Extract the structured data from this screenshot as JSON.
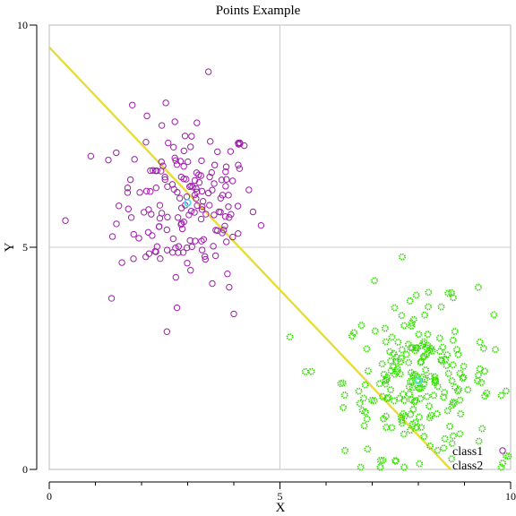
{
  "chart_data": {
    "type": "scatter",
    "title": "Points Example",
    "xlabel": "X",
    "ylabel": "Y",
    "xlim": [
      0,
      10
    ],
    "ylim": [
      0,
      10
    ],
    "x_major_ticks": [
      0,
      5,
      10
    ],
    "x_minor_ticks": [
      1,
      2,
      3,
      4,
      6,
      7,
      8,
      9
    ],
    "y_major_ticks": [
      0,
      5,
      10
    ],
    "grid": true,
    "legend_position": "bottom-right",
    "colors": {
      "class1": "#9c1fa8",
      "class2": "#33dd00",
      "centroid": "#55ddee",
      "line": "#e6dc3a",
      "grid": "#cccccc",
      "frame": "#bbbbbb"
    },
    "series": [
      {
        "name": "class1",
        "marker": "hollow-circle",
        "center": [
          3.0,
          6.0
        ],
        "spread": [
          0.75,
          0.9
        ],
        "count": 180,
        "x": [
          0.35,
          0.9,
          3.45,
          1.8,
          2.55,
          4.0,
          3.2,
          1.35,
          3.9
        ],
        "y": [
          5.6,
          7.05,
          8.95,
          8.2,
          3.1,
          3.5,
          7.8,
          3.85,
          4.1
        ]
      },
      {
        "name": "class2",
        "marker": "star-circle",
        "center": [
          8.0,
          2.0
        ],
        "spread": [
          0.8,
          0.85
        ],
        "count": 220,
        "x": [
          5.55,
          7.05,
          8.9,
          9.3,
          6.75,
          9.95,
          7.5
        ],
        "y": [
          2.2,
          4.25,
          0.8,
          4.1,
          0.05,
          0.3,
          0.2
        ]
      }
    ],
    "centroids": [
      {
        "name": "class1-centroid",
        "x": 3.0,
        "y": 6.0
      },
      {
        "name": "class2-centroid",
        "x": 8.0,
        "y": 2.0
      }
    ],
    "decision_line": {
      "name": "separating-line",
      "points": [
        [
          0.0,
          9.5
        ],
        [
          8.7,
          0.0
        ]
      ]
    },
    "legend": [
      "class1",
      "class2"
    ]
  }
}
